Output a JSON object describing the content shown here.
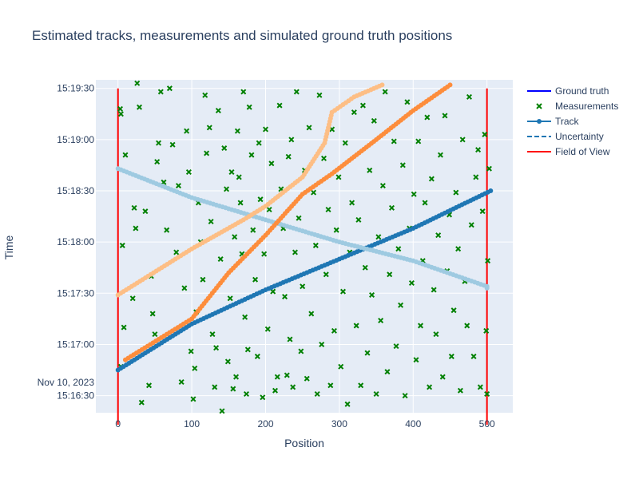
{
  "chart_data": {
    "type": "scatter",
    "title": "Estimated tracks, measurements and simulated ground truth positions",
    "xlabel": "Position",
    "ylabel": "Time",
    "xlim": [
      -30,
      535
    ],
    "ylim_seconds_after_16_30": [
      -10,
      185
    ],
    "x_ticks": [
      0,
      100,
      200,
      300,
      400,
      500
    ],
    "x_tick_labels": [
      "0",
      "100",
      "200",
      "300",
      "400",
      "500"
    ],
    "y_ticks": [
      0,
      30,
      60,
      90,
      120,
      150,
      180
    ],
    "y_tick_labels": [
      "15:16:30",
      "15:17:00",
      "15:17:30",
      "15:18:00",
      "15:18:30",
      "15:19:00",
      "15:19:30"
    ],
    "y_date_label": "Nov 10, 2023",
    "grid": true,
    "legend_position": "top-right",
    "legend": [
      {
        "name": "Ground truth",
        "symbol": "line",
        "color": "#0000ff"
      },
      {
        "name": "Measurements",
        "symbol": "x",
        "color": "#008000"
      },
      {
        "name": "Track",
        "symbol": "line-marker",
        "color": "#1f77b4"
      },
      {
        "name": "Uncertainty",
        "symbol": "dash",
        "color": "#1f77b4"
      },
      {
        "name": "Field of View",
        "symbol": "line",
        "color": "#ff0000"
      }
    ],
    "field_of_view": {
      "x": [
        0,
        500
      ],
      "y_range_seconds": [
        -17,
        180
      ],
      "color": "#ff0000"
    },
    "tracks": [
      {
        "label_series": "Track",
        "color": "#1f77b4",
        "points": [
          [
            0,
            15
          ],
          [
            100,
            42
          ],
          [
            200,
            62
          ],
          [
            300,
            80
          ],
          [
            400,
            98
          ],
          [
            505,
            120
          ]
        ]
      },
      {
        "label_series": "Track",
        "color": "#9ecae1",
        "points": [
          [
            0,
            133
          ],
          [
            100,
            116
          ],
          [
            200,
            103
          ],
          [
            300,
            90
          ],
          [
            400,
            79
          ],
          [
            500,
            64
          ],
          [
            500,
            63
          ]
        ]
      },
      {
        "label_series": "Track",
        "color": "#fd8d3c",
        "points": [
          [
            10,
            21
          ],
          [
            100,
            45
          ],
          [
            150,
            72
          ],
          [
            200,
            94
          ],
          [
            250,
            118
          ],
          [
            290,
            130
          ],
          [
            350,
            150
          ],
          [
            400,
            167
          ],
          [
            450,
            182
          ]
        ]
      },
      {
        "label_series": "Track",
        "color": "#fdbe85",
        "points": [
          [
            0,
            59
          ],
          [
            100,
            86
          ],
          [
            170,
            103
          ],
          [
            200,
            111
          ],
          [
            250,
            128
          ],
          [
            280,
            148
          ],
          [
            290,
            166
          ],
          [
            320,
            175
          ],
          [
            358,
            182
          ]
        ]
      }
    ],
    "measurements": {
      "color": "#008000",
      "count_note": "",
      "points": [
        [
          4,
          165
        ],
        [
          3,
          168
        ],
        [
          4,
          17
        ],
        [
          6,
          88
        ],
        [
          8,
          40
        ],
        [
          10,
          141
        ],
        [
          20,
          57
        ],
        [
          22,
          110
        ],
        [
          24,
          98
        ],
        [
          26,
          183
        ],
        [
          29,
          169
        ],
        [
          32,
          -4
        ],
        [
          37,
          108
        ],
        [
          42,
          6
        ],
        [
          45,
          70
        ],
        [
          47,
          48
        ],
        [
          50,
          36
        ],
        [
          53,
          137
        ],
        [
          55,
          148
        ],
        [
          58,
          178
        ],
        [
          62,
          125
        ],
        [
          66,
          97
        ],
        [
          70,
          180
        ],
        [
          74,
          147
        ],
        [
          79,
          84
        ],
        [
          82,
          123
        ],
        [
          86,
          8
        ],
        [
          90,
          63
        ],
        [
          93,
          155
        ],
        [
          96,
          131
        ],
        [
          99,
          26
        ],
        [
          102,
          -2
        ],
        [
          104,
          16
        ],
        [
          106,
          49
        ],
        [
          109,
          113
        ],
        [
          112,
          90
        ],
        [
          115,
          68
        ],
        [
          118,
          176
        ],
        [
          120,
          142
        ],
        [
          124,
          157
        ],
        [
          126,
          102
        ],
        [
          128,
          36
        ],
        [
          131,
          5
        ],
        [
          133,
          28
        ],
        [
          136,
          167
        ],
        [
          139,
          80
        ],
        [
          141,
          -9
        ],
        [
          144,
          145
        ],
        [
          147,
          121
        ],
        [
          149,
          20
        ],
        [
          152,
          57
        ],
        [
          154,
          131
        ],
        [
          156,
          4
        ],
        [
          158,
          93
        ],
        [
          160,
          11
        ],
        [
          162,
          155
        ],
        [
          164,
          128
        ],
        [
          166,
          113
        ],
        [
          168,
          83
        ],
        [
          170,
          178
        ],
        [
          172,
          46
        ],
        [
          174,
          1
        ],
        [
          176,
          27
        ],
        [
          178,
          169
        ],
        [
          181,
          141
        ],
        [
          183,
          97
        ],
        [
          186,
          68
        ],
        [
          189,
          23
        ],
        [
          191,
          148
        ],
        [
          193,
          115
        ],
        [
          196,
          -1
        ],
        [
          198,
          83
        ],
        [
          200,
          156
        ],
        [
          203,
          39
        ],
        [
          205,
          109
        ],
        [
          208,
          136
        ],
        [
          210,
          61
        ],
        [
          213,
          3
        ],
        [
          216,
          11
        ],
        [
          219,
          170
        ],
        [
          221,
          121
        ],
        [
          224,
          98
        ],
        [
          226,
          58
        ],
        [
          229,
          12
        ],
        [
          231,
          140
        ],
        [
          233,
          33
        ],
        [
          235,
          150
        ],
        [
          237,
          5
        ],
        [
          240,
          84
        ],
        [
          242,
          178
        ],
        [
          245,
          104
        ],
        [
          248,
          26
        ],
        [
          250,
          64
        ],
        [
          253,
          132
        ],
        [
          256,
          10
        ],
        [
          259,
          157
        ],
        [
          262,
          48
        ],
        [
          265,
          119
        ],
        [
          268,
          88
        ],
        [
          270,
          1
        ],
        [
          273,
          176
        ],
        [
          276,
          30
        ],
        [
          279,
          139
        ],
        [
          282,
          71
        ],
        [
          285,
          109
        ],
        [
          288,
          6
        ],
        [
          290,
          156
        ],
        [
          293,
          38
        ],
        [
          296,
          97
        ],
        [
          299,
          128
        ],
        [
          302,
          17
        ],
        [
          305,
          61
        ],
        [
          308,
          148
        ],
        [
          311,
          -5
        ],
        [
          314,
          84
        ],
        [
          317,
          113
        ],
        [
          320,
          166
        ],
        [
          323,
          41
        ],
        [
          326,
          103
        ],
        [
          329,
          6
        ],
        [
          332,
          170
        ],
        [
          335,
          75
        ],
        [
          338,
          25
        ],
        [
          341,
          132
        ],
        [
          344,
          59
        ],
        [
          347,
          161
        ],
        [
          350,
          1
        ],
        [
          353,
          93
        ],
        [
          356,
          44
        ],
        [
          359,
          123
        ],
        [
          362,
          178
        ],
        [
          365,
          14
        ],
        [
          368,
          71
        ],
        [
          371,
          110
        ],
        [
          374,
          149
        ],
        [
          377,
          29
        ],
        [
          380,
          86
        ],
        [
          383,
          53
        ],
        [
          386,
          135
        ],
        [
          389,
          0
        ],
        [
          392,
          172
        ],
        [
          395,
          98
        ],
        [
          398,
          66
        ],
        [
          401,
          118
        ],
        [
          404,
          21
        ],
        [
          407,
          149
        ],
        [
          410,
          41
        ],
        [
          413,
          79
        ],
        [
          416,
          113
        ],
        [
          419,
          163
        ],
        [
          422,
          5
        ],
        [
          425,
          127
        ],
        [
          428,
          62
        ],
        [
          431,
          36
        ],
        [
          434,
          94
        ],
        [
          437,
          141
        ],
        [
          440,
          11
        ],
        [
          443,
          164
        ],
        [
          446,
          73
        ],
        [
          449,
          106
        ],
        [
          452,
          23
        ],
        [
          455,
          50
        ],
        [
          458,
          119
        ],
        [
          461,
          86
        ],
        [
          464,
          3
        ],
        [
          467,
          150
        ],
        [
          470,
          67
        ],
        [
          473,
          41
        ],
        [
          476,
          175
        ],
        [
          479,
          100
        ],
        [
          482,
          23
        ],
        [
          485,
          128
        ],
        [
          488,
          144
        ],
        [
          491,
          5
        ],
        [
          494,
          108
        ],
        [
          497,
          153
        ],
        [
          499,
          38
        ],
        [
          500,
          1
        ],
        [
          501,
          79
        ],
        [
          503,
          133
        ]
      ]
    }
  }
}
